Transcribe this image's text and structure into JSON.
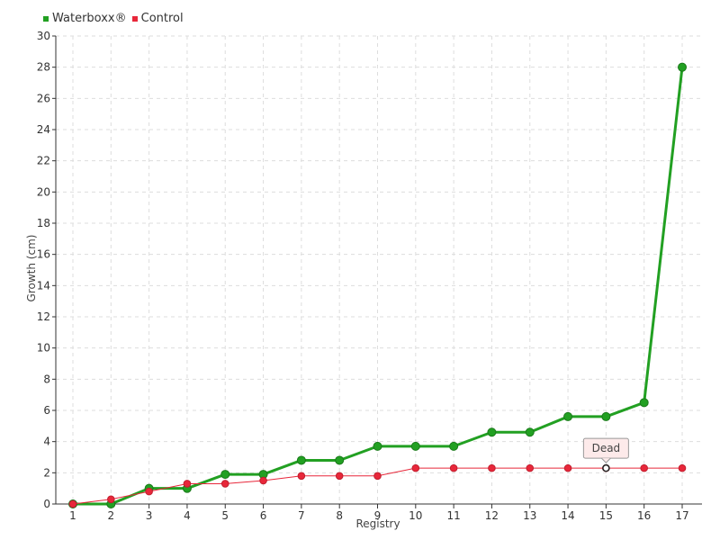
{
  "chart_data": {
    "type": "line",
    "title": "",
    "xlabel": "Registry",
    "ylabel": "Growth (cm)",
    "categories": [
      "1",
      "2",
      "3",
      "4",
      "5",
      "6",
      "7",
      "8",
      "9",
      "10",
      "11",
      "12",
      "13",
      "14",
      "15",
      "16",
      "17"
    ],
    "ylim": [
      0,
      30
    ],
    "yticks": [
      0,
      2,
      4,
      6,
      8,
      10,
      12,
      14,
      16,
      18,
      20,
      22,
      24,
      26,
      28,
      30
    ],
    "grid": true,
    "legend_position": "top-left",
    "series": [
      {
        "name": "Waterboxx®",
        "color": "#22a022",
        "values": [
          0,
          0,
          1,
          1,
          1.9,
          1.9,
          2.8,
          2.8,
          3.7,
          3.7,
          3.7,
          4.6,
          4.6,
          5.6,
          5.6,
          6.5,
          28
        ]
      },
      {
        "name": "Control",
        "color": "#e8273a",
        "values": [
          0,
          0.3,
          0.8,
          1.3,
          1.3,
          1.5,
          1.8,
          1.8,
          1.8,
          2.3,
          2.3,
          2.3,
          2.3,
          2.3,
          2.3,
          2.3,
          2.3
        ]
      }
    ],
    "annotations": [
      {
        "text": "Dead",
        "series": "Control",
        "category": "15"
      }
    ]
  }
}
